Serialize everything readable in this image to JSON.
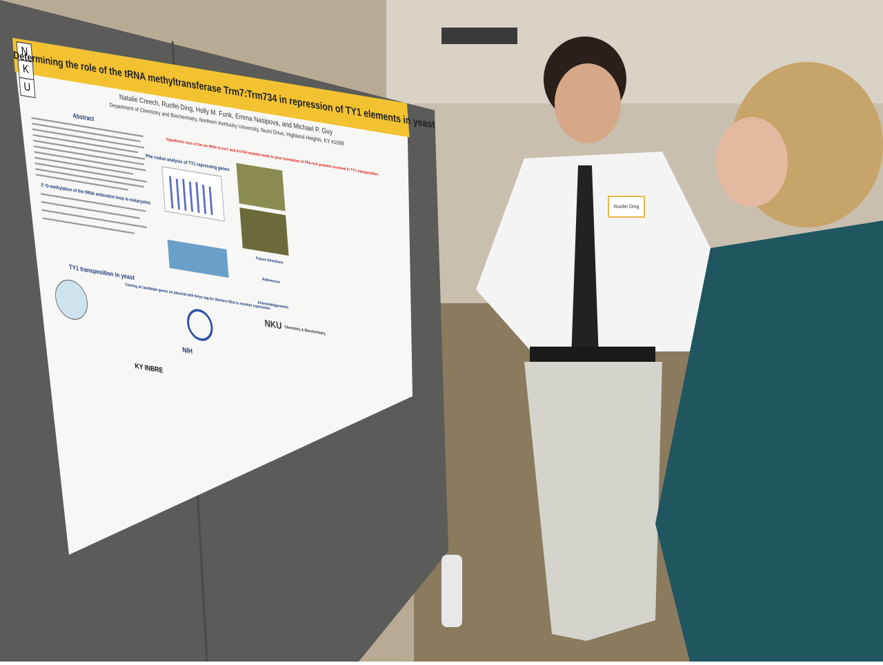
{
  "poster": {
    "logo_letters": [
      "N",
      "K",
      "U"
    ],
    "title": "Determining the role of the tRNA methyltransferase Trm7:Trm734 in repression of TY1 elements in yeast",
    "authors": "Natalie Creech, Ruofei Ding, Holly M. Funk, Emma Nasipova, and Michael P. Guy",
    "affiliation": "Department of Chemistry and Biochemistry, Northern Kentucky University, Nunn Drive, Highland Heights, KY 41099",
    "sections": {
      "abstract": "Abstract",
      "methylation": "2'-O-methylation of the tRNA anticodon loop in eukaryotes",
      "transposition": "TY1 transposition in yeast",
      "hypothesis": "Hypothesis: loss of Gm on tRNA in trm7 and trm734 mutants leads to poor translation of Phe-rich proteins involved in TY1 transposition",
      "codon": "Phe codon analysis of TY1 repressing genes",
      "cloning": "Cloning of candidate genes on plasmid with 9myc tag for Western Blot to monitor expression",
      "future": "Future Directions",
      "references": "References",
      "acknowledgements": "Acknowledgements"
    },
    "logos": {
      "nku": "NKU",
      "dept": "Chemistry & Biochemistry",
      "nih": "NIH",
      "inbre": "KY INBRE"
    }
  },
  "badge": {
    "name": "Ruofei Ding"
  }
}
